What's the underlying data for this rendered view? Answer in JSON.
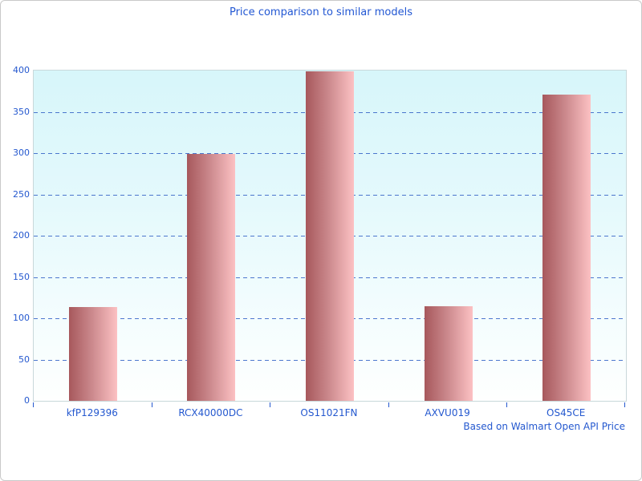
{
  "title": "Price comparison to similar models",
  "footer": "Based on Walmart Open API Price",
  "chart_data": {
    "type": "bar",
    "title": "Price comparison to similar models",
    "categories": [
      "kfP129396",
      "RCX40000DC",
      "OS11021FN",
      "AXVU019",
      "OS45CE"
    ],
    "values": [
      114,
      299,
      399,
      115,
      371
    ],
    "xlabel": "",
    "ylabel": "",
    "ylim": [
      0,
      400
    ],
    "yticks": [
      0,
      50,
      100,
      150,
      200,
      250,
      300,
      350,
      400
    ],
    "grid": "horizontal-dashed",
    "legend": "none",
    "annotation": "Based on Walmart Open API Price",
    "colors": {
      "bar_gradient_left": "#a7585c",
      "bar_gradient_right": "#fcc1c3",
      "text": "#2458cf",
      "gridline": "#3a68c8",
      "plot_bg_top": "#d7f6fa",
      "plot_bg_bottom": "#fefffe",
      "spine": "#c9d8da"
    }
  }
}
